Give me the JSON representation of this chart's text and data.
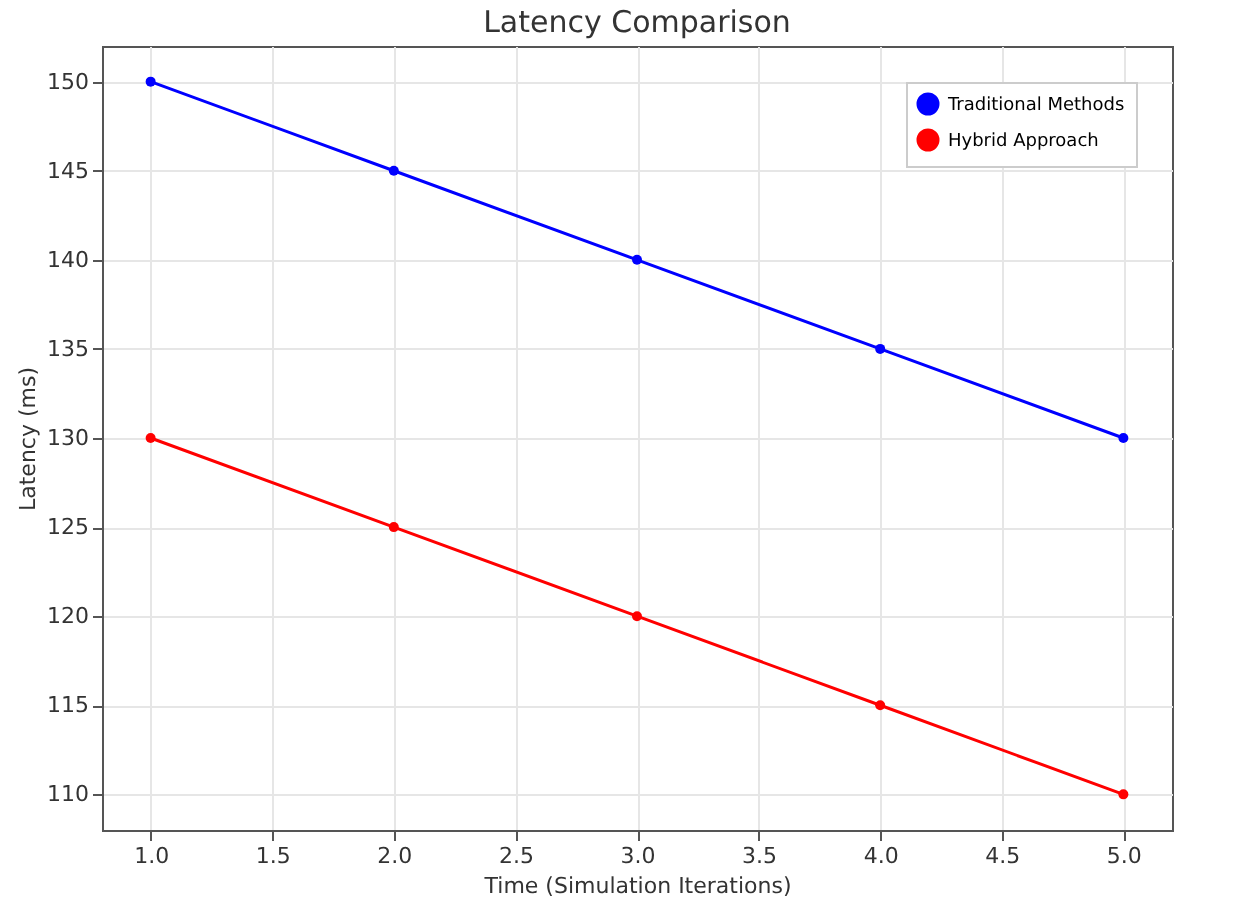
{
  "chart_data": {
    "type": "line",
    "title": "Latency Comparison",
    "xlabel": "Time (Simulation Iterations)",
    "ylabel": "Latency (ms)",
    "x": [
      1,
      2,
      3,
      4,
      5
    ],
    "series": [
      {
        "name": "Traditional Methods",
        "color": "#0000ff",
        "values": [
          150,
          145,
          140,
          135,
          130
        ]
      },
      {
        "name": "Hybrid Approach",
        "color": "#ff0000",
        "values": [
          130,
          125,
          120,
          115,
          110
        ]
      }
    ],
    "xlim": [
      0.8,
      5.2
    ],
    "ylim": [
      108,
      152
    ],
    "xticks": [
      {
        "value": 1,
        "label": "1.0"
      },
      {
        "value": 1.5,
        "label": "1.5"
      },
      {
        "value": 2,
        "label": "2.0"
      },
      {
        "value": 2.5,
        "label": "2.5"
      },
      {
        "value": 3,
        "label": "3.0"
      },
      {
        "value": 3.5,
        "label": "3.5"
      },
      {
        "value": 4,
        "label": "4.0"
      },
      {
        "value": 4.5,
        "label": "4.5"
      },
      {
        "value": 5,
        "label": "5.0"
      }
    ],
    "yticks": [
      110,
      115,
      120,
      125,
      130,
      135,
      140,
      145,
      150
    ],
    "grid": true,
    "legend": "top right",
    "marker": "circle",
    "line_style": "solid"
  }
}
